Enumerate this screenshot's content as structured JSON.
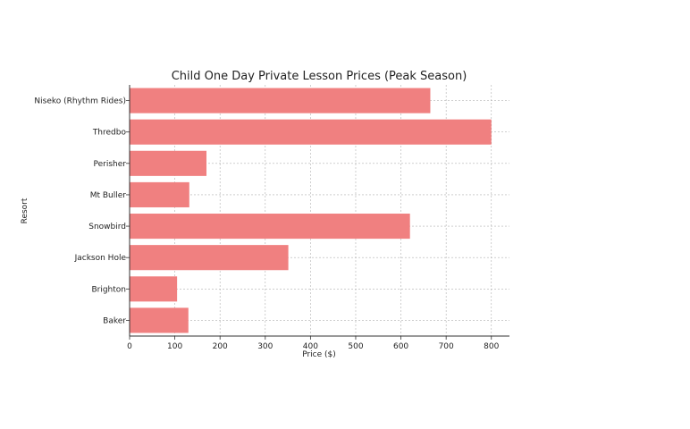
{
  "chart_data": {
    "type": "bar",
    "orientation": "horizontal",
    "title": "Child One Day Private Lesson Prices (Peak Season)",
    "xlabel": "Price ($)",
    "ylabel": "Resort",
    "categories": [
      "Niseko (Rhythm Rides)",
      "Thredbo",
      "Perisher",
      "Mt Buller",
      "Snowbird",
      "Jackson Hole",
      "Brighton",
      "Baker"
    ],
    "values": [
      665,
      800,
      170,
      132,
      620,
      351,
      105,
      130
    ],
    "xlim": [
      0,
      840
    ],
    "xticks": [
      0,
      100,
      200,
      300,
      400,
      500,
      600,
      700,
      800
    ],
    "grid": true,
    "bar_color": "#f08080"
  }
}
